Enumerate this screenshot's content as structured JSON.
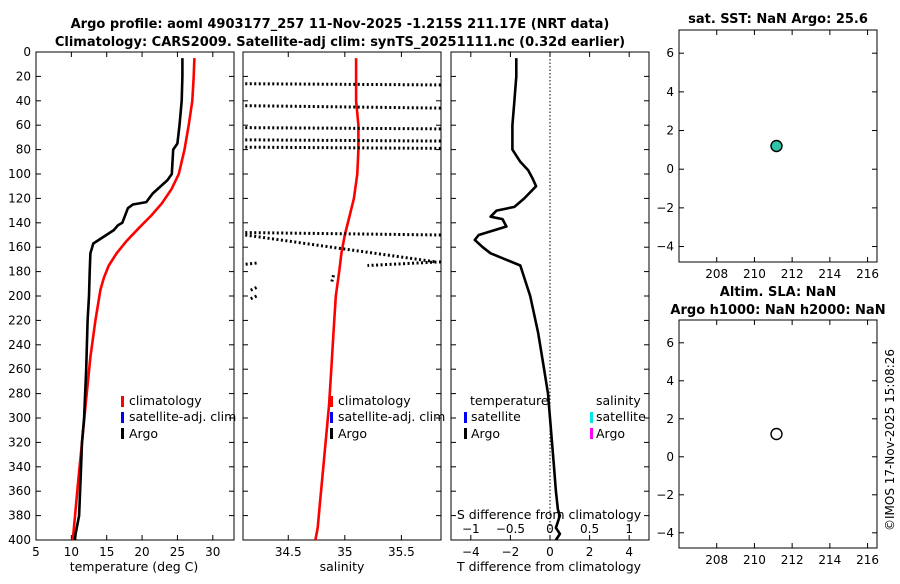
{
  "titles": {
    "main_line1": "Argo profile: aoml 4903177_257 11-Nov-2025 -1.215S 211.17E (NRT data)",
    "main_line2": "Climatology: CARS2009. Satellite-adj clim: synTS_20251111.nc (0.32d earlier)",
    "sst": "sat. SST: NaN Argo: 25.6",
    "sla_line1": "Altim. SLA: NaN",
    "sla_line2": "Argo h1000: NaN h2000: NaN"
  },
  "axis_labels": {
    "temperature": "temperature (deg C)",
    "salinity": "salinity",
    "tdiff": "T difference from climatology",
    "sdiff": "S difference from climatology"
  },
  "legends": {
    "temp": [
      "climatology",
      "satellite-adj. clim",
      "Argo"
    ],
    "sal": [
      "climatology",
      "satellite-adj. clim",
      "Argo"
    ],
    "diff_head_t": "temperature",
    "diff_head_s": "salinity",
    "diff_t": [
      "satellite",
      "Argo"
    ],
    "diff_s": [
      "satellite",
      "Argo"
    ]
  },
  "colors": {
    "climatology": "#ff0000",
    "satellite": "#0000ff",
    "argo": "#000000",
    "sal_satellite": "#00e5e5",
    "sal_argo": "#ff00ff",
    "sst_marker": "#2ec4a6"
  },
  "watermark": "©IMOS 17-Nov-2025 15:08:26",
  "chart_data": [
    {
      "type": "line",
      "panel": "temperature",
      "xlabel": "temperature (deg C)",
      "xlim": [
        5,
        33
      ],
      "ylim": [
        400,
        0
      ],
      "xticks": [
        5,
        10,
        15,
        20,
        25,
        30
      ],
      "yticks": [
        0,
        20,
        40,
        60,
        80,
        100,
        120,
        140,
        160,
        180,
        200,
        220,
        240,
        260,
        280,
        300,
        320,
        340,
        360,
        380,
        400
      ],
      "series": [
        {
          "name": "climatology",
          "style": "solid",
          "x": [
            27.4,
            27.3,
            27.1,
            26.6,
            26.0,
            25.2,
            24.2,
            22.8,
            21.3,
            19.6,
            17.8,
            16.4,
            15.3,
            14.6,
            14.1,
            13.4,
            12.7,
            12.0,
            11.5,
            11.0,
            10.6,
            10.2
          ],
          "y": [
            5,
            20,
            40,
            60,
            80,
            100,
            112,
            124,
            134,
            144,
            155,
            165,
            175,
            185,
            195,
            220,
            250,
            290,
            320,
            350,
            375,
            400
          ]
        },
        {
          "name": "Argo",
          "style": "solid",
          "x": [
            25.7,
            25.7,
            25.6,
            25.3,
            25.0,
            24.4,
            24.2,
            23.6,
            21.5,
            20.6,
            18.7,
            18.0,
            17.2,
            16.6,
            16.0,
            13.1,
            12.7,
            12.6,
            12.5,
            12.3,
            12.1,
            11.8,
            11.5,
            11.3,
            11.1,
            10.6,
            10.5
          ],
          "y": [
            5,
            20,
            40,
            60,
            75,
            80,
            100,
            105,
            116,
            123,
            125,
            128,
            140,
            142,
            146,
            157,
            165,
            180,
            200,
            220,
            260,
            300,
            320,
            350,
            380,
            395,
            400
          ]
        }
      ]
    },
    {
      "type": "line",
      "panel": "salinity",
      "xlabel": "salinity",
      "xlim": [
        34.1,
        35.85
      ],
      "ylim": [
        400,
        0
      ],
      "xticks": [
        34.5,
        35,
        35.5
      ],
      "series": [
        {
          "name": "climatology",
          "style": "solid",
          "x": [
            35.1,
            35.1,
            35.12,
            35.12,
            35.11,
            35.08,
            35.04,
            35.0,
            34.97,
            34.95,
            34.92,
            34.9,
            34.88,
            34.86,
            34.83,
            34.8,
            34.78,
            34.76,
            34.74
          ],
          "y": [
            5,
            40,
            60,
            80,
            100,
            120,
            135,
            150,
            165,
            180,
            200,
            230,
            260,
            290,
            320,
            350,
            370,
            390,
            400
          ]
        },
        {
          "name": "Argo",
          "style": "dotted",
          "x": [
            34.12,
            35.85,
            34.12,
            35.85,
            34.12,
            35.85,
            34.12,
            35.85,
            34.12,
            35.85,
            34.12,
            35.85,
            34.12,
            35.8,
            34.22,
            34.12,
            35.85,
            35.2,
            34.9,
            34.88,
            34.22,
            34.15,
            34.22,
            34.15
          ],
          "y": [
            26,
            27,
            44,
            46,
            62,
            63,
            72,
            73,
            78,
            79,
            148,
            150,
            150,
            172,
            173,
            174,
            172,
            175,
            183,
            190,
            193,
            196,
            200,
            203
          ]
        }
      ]
    },
    {
      "type": "line",
      "panel": "difference",
      "xlabel": "T difference from climatology",
      "x2label": "S difference from climatology",
      "xlim": [
        -5,
        5
      ],
      "x2lim": [
        -1.25,
        1.25
      ],
      "ylim": [
        400,
        0
      ],
      "xticks": [
        -4,
        -2,
        0,
        2,
        4
      ],
      "x2ticks": [
        -1,
        -0.5,
        0,
        0.5,
        1
      ],
      "series": [
        {
          "name": "Argo",
          "style": "solid",
          "x": [
            -1.7,
            -1.7,
            -1.8,
            -1.9,
            -1.9,
            -1.5,
            -1.1,
            -0.9,
            -0.7,
            -1.3,
            -1.8,
            -2.7,
            -3.0,
            -2.4,
            -2.2,
            -2.8,
            -3.6,
            -3.8,
            -3.4,
            -3.0,
            -1.5,
            -1.0,
            -0.6,
            -0.3,
            -0.1,
            0.0,
            0.1,
            0.2,
            0.3,
            0.4,
            0.5,
            0.3,
            0.5,
            0.3
          ],
          "y": [
            5,
            20,
            40,
            60,
            80,
            90,
            97,
            103,
            110,
            120,
            127,
            130,
            135,
            137,
            143,
            146,
            150,
            154,
            160,
            165,
            175,
            200,
            230,
            260,
            280,
            300,
            320,
            340,
            360,
            375,
            380,
            390,
            395,
            400
          ]
        }
      ]
    },
    {
      "type": "scatter",
      "panel": "sst",
      "xlim": [
        206,
        216.5
      ],
      "ylim": [
        -4.8,
        7.2
      ],
      "xticks": [
        208,
        210,
        212,
        214,
        216
      ],
      "yticks": [
        -4,
        -2,
        0,
        2,
        4,
        6
      ],
      "series": [
        {
          "name": "Argo",
          "x": [
            211.17
          ],
          "y": [
            1.2
          ]
        }
      ]
    },
    {
      "type": "scatter",
      "panel": "sla",
      "xlim": [
        206,
        216.5
      ],
      "ylim": [
        -4.8,
        7.2
      ],
      "xticks": [
        208,
        210,
        212,
        214,
        216
      ],
      "yticks": [
        -4,
        -2,
        0,
        2,
        4,
        6
      ],
      "series": [
        {
          "name": "Argo",
          "x": [
            211.17
          ],
          "y": [
            1.2
          ]
        }
      ]
    }
  ]
}
